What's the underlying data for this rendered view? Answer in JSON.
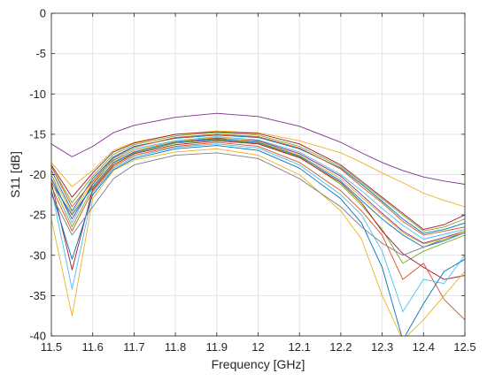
{
  "chart_data": {
    "type": "line",
    "title": "",
    "xlabel": "Frequency [GHz]",
    "ylabel": "S11 [dB]",
    "xlim": [
      11.5,
      12.5
    ],
    "ylim": [
      -40,
      0
    ],
    "xticks": [
      11.5,
      11.6,
      11.7,
      11.8,
      11.9,
      12,
      12.1,
      12.2,
      12.3,
      12.4,
      12.5
    ],
    "xtick_labels": [
      "11.5",
      "11.6",
      "11.7",
      "11.8",
      "11.9",
      "12",
      "12.1",
      "12.2",
      "12.3",
      "12.4",
      "12.5"
    ],
    "yticks": [
      0,
      -5,
      -10,
      -15,
      -20,
      -25,
      -30,
      -35,
      -40
    ],
    "ytick_labels": [
      "0",
      "-5",
      "-10",
      "-15",
      "-20",
      "-25",
      "-30",
      "-35",
      "-40"
    ],
    "grid": true,
    "legend": "none",
    "x": [
      11.5,
      11.55,
      11.6,
      11.65,
      11.7,
      11.8,
      11.9,
      12.0,
      12.1,
      12.2,
      12.25,
      12.3,
      12.35,
      12.4,
      12.45,
      12.5
    ],
    "series": [
      {
        "color": "#7e2f8e",
        "values": [
          -16.2,
          -17.8,
          -16.5,
          -14.8,
          -13.9,
          -12.9,
          -12.4,
          -12.8,
          -14.0,
          -16.0,
          -17.3,
          -18.5,
          -19.5,
          -20.3,
          -20.8,
          -21.2
        ]
      },
      {
        "color": "#edb120",
        "values": [
          -18.5,
          -21.5,
          -19.5,
          -17.0,
          -16.0,
          -15.0,
          -14.6,
          -14.8,
          -15.8,
          -17.3,
          -18.5,
          -19.8,
          -21.0,
          -22.3,
          -23.2,
          -24.0
        ]
      },
      {
        "color": "#a2142f",
        "values": [
          -18.8,
          -22.8,
          -19.8,
          -17.2,
          -16.1,
          -15.0,
          -14.7,
          -14.9,
          -16.2,
          -18.8,
          -20.8,
          -22.8,
          -24.8,
          -26.8,
          -26.2,
          -25.0
        ]
      },
      {
        "color": "#77ac30",
        "values": [
          -19.0,
          -23.5,
          -20.2,
          -17.5,
          -16.3,
          -15.2,
          -14.8,
          -15.1,
          -16.5,
          -19.0,
          -21.0,
          -23.0,
          -25.0,
          -27.0,
          -26.5,
          -25.5
        ]
      },
      {
        "color": "#0072bd",
        "values": [
          -19.5,
          -24.5,
          -20.5,
          -17.8,
          -16.5,
          -15.5,
          -15.1,
          -15.4,
          -16.8,
          -19.2,
          -21.2,
          -23.3,
          -25.5,
          -27.3,
          -26.8,
          -26.0
        ]
      },
      {
        "color": "#d95319",
        "values": [
          -19.0,
          -24.0,
          -20.8,
          -17.9,
          -16.6,
          -15.4,
          -15.0,
          -15.3,
          -16.7,
          -19.3,
          -21.5,
          -23.5,
          -25.8,
          -27.5,
          -27.0,
          -26.5
        ]
      },
      {
        "color": "#4dbeee",
        "values": [
          -20.0,
          -26.0,
          -21.0,
          -18.0,
          -16.8,
          -15.8,
          -15.3,
          -15.7,
          -17.2,
          -20.0,
          -22.0,
          -24.2,
          -26.3,
          -28.0,
          -27.4,
          -26.8
        ]
      },
      {
        "color": "#7e2f8e",
        "values": [
          -20.5,
          -25.5,
          -21.2,
          -18.2,
          -17.0,
          -15.9,
          -15.5,
          -15.8,
          -17.4,
          -20.2,
          -22.5,
          -24.8,
          -27.0,
          -28.5,
          -27.8,
          -27.0
        ]
      },
      {
        "color": "#0072bd",
        "values": [
          -21.0,
          -25.0,
          -21.5,
          -18.5,
          -17.2,
          -16.0,
          -15.6,
          -16.0,
          -17.7,
          -20.8,
          -23.2,
          -25.5,
          -27.5,
          -29.0,
          -28.2,
          -27.2
        ]
      },
      {
        "color": "#77ac30",
        "values": [
          -20.8,
          -26.5,
          -21.6,
          -18.6,
          -17.3,
          -16.1,
          -15.7,
          -16.1,
          -17.8,
          -21.2,
          -23.8,
          -26.8,
          -31.0,
          -29.5,
          -28.5,
          -27.5
        ]
      },
      {
        "color": "#a2142f",
        "values": [
          -21.0,
          -31.8,
          -21.8,
          -18.8,
          -17.4,
          -16.3,
          -15.8,
          -16.2,
          -17.9,
          -21.0,
          -23.5,
          -27.0,
          -29.8,
          -31.5,
          -33.0,
          -32.5
        ]
      },
      {
        "color": "#d95319",
        "values": [
          -21.5,
          -27.0,
          -22.0,
          -19.0,
          -17.6,
          -16.5,
          -16.0,
          -16.5,
          -18.5,
          -22.0,
          -24.5,
          -27.5,
          -33.0,
          -31.0,
          -35.5,
          -38.0
        ]
      },
      {
        "color": "#4dbeee",
        "values": [
          -21.8,
          -34.2,
          -22.2,
          -19.2,
          -17.8,
          -16.6,
          -16.2,
          -16.7,
          -18.8,
          -22.5,
          -25.0,
          -29.5,
          -37.0,
          -33.0,
          -33.5,
          -30.0
        ]
      },
      {
        "color": "#0072bd",
        "values": [
          -22.0,
          -30.5,
          -22.5,
          -19.4,
          -18.0,
          -16.8,
          -16.4,
          -17.0,
          -19.2,
          -23.0,
          -26.0,
          -31.5,
          -40.5,
          -36.0,
          -32.0,
          -30.5
        ]
      },
      {
        "color": "#edb120",
        "values": [
          -25.5,
          -37.5,
          -23.0,
          -19.5,
          -18.2,
          -17.2,
          -16.8,
          -17.6,
          -20.0,
          -24.5,
          -28.0,
          -35.0,
          -40.5,
          -38.0,
          -35.0,
          -32.0
        ]
      },
      {
        "color": "#7e7e7e",
        "values": [
          -22.5,
          -27.5,
          -24.0,
          -20.5,
          -18.8,
          -17.6,
          -17.3,
          -18.0,
          -20.5,
          -24.0,
          -26.5,
          -28.5,
          -30.0,
          -29.0,
          -28.0,
          -27.2
        ]
      },
      {
        "color": "#edb120",
        "values": [
          -20.0,
          -24.8,
          -21.0,
          -18.3,
          -17.0,
          -15.9,
          -15.4,
          -15.9,
          -17.6,
          -20.5,
          -22.8,
          -25.0,
          -27.2,
          -28.6,
          -28.0,
          -27.0
        ]
      }
    ]
  }
}
